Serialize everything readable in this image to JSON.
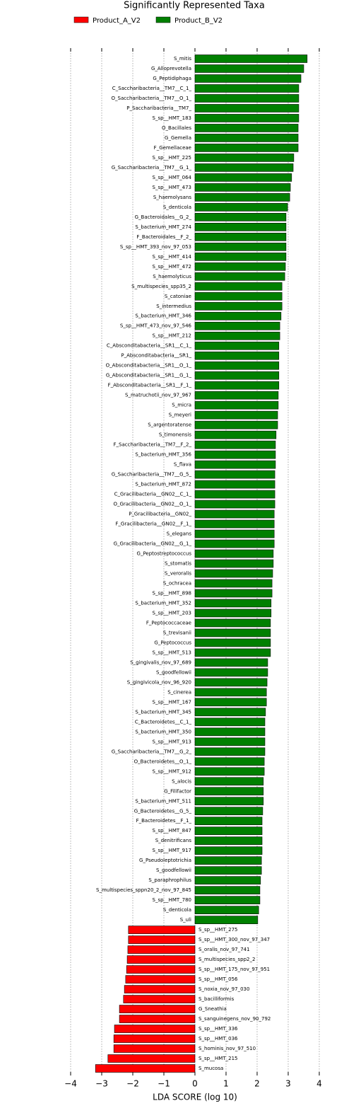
{
  "chart_data": {
    "type": "bar",
    "orientation": "horizontal",
    "title": "Significantly Represented Taxa",
    "xlabel": "LDA SCORE (log 10)",
    "xlim": [
      -4,
      4
    ],
    "xticks": [
      {
        "value": -4,
        "label": "−4"
      },
      {
        "value": -3,
        "label": "−3"
      },
      {
        "value": -2,
        "label": "−2"
      },
      {
        "value": -1,
        "label": "−1"
      },
      0,
      1,
      2,
      3,
      4
    ],
    "grid": true,
    "legend": "top",
    "categories": [
      "S_mitis",
      "G_Alloprevotella",
      "G_Peptidiphaga",
      "C_Saccharibacteria__TM7__C_1_",
      "O_Saccharibacteria__TM7__O_1_",
      "P_Saccharibacteria__TM7_",
      "S_sp__HMT_183",
      "O_Bacillales",
      "G_Gemella",
      "F_Gemellaceae",
      "S_sp__HMT_225",
      "G_Saccharibacteria__TM7__G_1_",
      "S_sp__HMT_064",
      "S_sp__HMT_473",
      "S_haemolysans",
      "S_denticola",
      "G_Bacteroidales__G_2_",
      "S_bacterium_HMT_274",
      "F_Bacteroidales__F_2_",
      "S_sp__HMT_393_nov_97_053",
      "S_sp__HMT_414",
      "S_sp__HMT_472",
      "S_haemolyticus",
      "S_multispecies_spp35_2",
      "S_catoniae",
      "S_intermedius",
      "S_bacterium_HMT_346",
      "S_sp__HMT_473_nov_97_546",
      "S_sp__HMT_212",
      "C_Absconditabacteria__SR1__C_1_",
      "P_Absconditabacteria__SR1_",
      "O_Absconditabacteria__SR1__O_1_",
      "G_Absconditabacteria__SR1__G_1_",
      "F_Absconditabacteria__SR1__F_1_",
      "S_matruchotii_nov_97_967",
      "S_micra",
      "S_meyeri",
      "S_argentoratense",
      "S_timonensis",
      "F_Saccharibacteria__TM7__F_2_",
      "S_bacterium_HMT_356",
      "S_flava",
      "G_Saccharibacteria__TM7__G_5_",
      "S_bacterium_HMT_872",
      "C_Gracilibacteria__GN02__C_1_",
      "O_Gracilibacteria__GN02__O_1_",
      "P_Gracilibacteria__GN02_",
      "F_Gracilibacteria__GN02__F_1_",
      "S_elegans",
      "G_Gracilibacteria__GN02__G_1_",
      "G_Peptostreptococcus",
      "S_stomatis",
      "S_veroralis",
      "S_ochracea",
      "S_sp__HMT_898",
      "S_bacterium_HMT_352",
      "S_sp__HMT_203",
      "F_Peptococcaceae",
      "S_trevisanii",
      "G_Peptococcus",
      "S_sp__HMT_513",
      "S_gingivalis_nov_97_689",
      "S_goodfellowii",
      "S_gingivicola_nov_96_920",
      "S_cinerea",
      "S_sp__HMT_167",
      "S_bacterium_HMT_345",
      "C_Bacteroidetes__C_1_",
      "S_bacterium_HMT_350",
      "S_sp__HMT_913",
      "G_Saccharibacteria__TM7__G_2_",
      "O_Bacteroidetes__O_1_",
      "S_sp__HMT_912",
      "S_alocis",
      "G_Filifactor",
      "S_bacterium_HMT_511",
      "G_Bacteroidetes__G_5_",
      "F_Bacteroidetes__F_1_",
      "S_sp__HMT_847",
      "S_denitrificans",
      "S_sp__HMT_917",
      "G_Pseudoleptotrichia",
      "S_goodfellowii",
      "S_paraphrophilus",
      "S_multispecies_sppn20_2_nov_97_845",
      "S_sp__HMT_780",
      "S_denticola",
      "S_uli",
      "S_sp__HMT_275",
      "S_sp__HMT_300_nov_97_347",
      "S_oralis_nov_97_741",
      "S_multispecies_spp2_2",
      "S_sp__HMT_175_nov_97_951",
      "S_sp__HMT_056",
      "S_noxia_nov_97_030",
      "S_bacilliformis",
      "G_Sneathia",
      "S_sanguinegens_nov_90_792",
      "S_sp__HMT_336",
      "S_sp__HMT_036",
      "S_hominis_nov_97_510",
      "S_sp__HMT_215",
      "S_mucosa"
    ],
    "series": [
      {
        "name": "Product_A_V2",
        "color": "#ff0000",
        "values": [
          null,
          null,
          null,
          null,
          null,
          null,
          null,
          null,
          null,
          null,
          null,
          null,
          null,
          null,
          null,
          null,
          null,
          null,
          null,
          null,
          null,
          null,
          null,
          null,
          null,
          null,
          null,
          null,
          null,
          null,
          null,
          null,
          null,
          null,
          null,
          null,
          null,
          null,
          null,
          null,
          null,
          null,
          null,
          null,
          null,
          null,
          null,
          null,
          null,
          null,
          null,
          null,
          null,
          null,
          null,
          null,
          null,
          null,
          null,
          null,
          null,
          null,
          null,
          null,
          null,
          null,
          null,
          null,
          null,
          null,
          null,
          null,
          null,
          null,
          null,
          null,
          null,
          null,
          null,
          null,
          null,
          null,
          null,
          null,
          null,
          null,
          null,
          null,
          -2.14,
          -2.14,
          -2.16,
          -2.18,
          -2.2,
          -2.23,
          -2.27,
          -2.3,
          -2.43,
          -2.43,
          -2.59,
          -2.61,
          -2.61,
          -2.8,
          -3.2
        ]
      },
      {
        "name": "Product_B_V2",
        "color": "#008000",
        "values": [
          3.61,
          3.5,
          3.41,
          3.34,
          3.34,
          3.34,
          3.34,
          3.32,
          3.32,
          3.32,
          3.18,
          3.16,
          3.11,
          3.07,
          3.05,
          2.98,
          2.93,
          2.93,
          2.93,
          2.93,
          2.93,
          2.91,
          2.89,
          2.8,
          2.8,
          2.8,
          2.77,
          2.73,
          2.73,
          2.7,
          2.7,
          2.7,
          2.7,
          2.7,
          2.68,
          2.68,
          2.66,
          2.66,
          2.61,
          2.59,
          2.59,
          2.59,
          2.57,
          2.57,
          2.57,
          2.57,
          2.55,
          2.55,
          2.55,
          2.55,
          2.52,
          2.52,
          2.5,
          2.48,
          2.48,
          2.45,
          2.45,
          2.43,
          2.43,
          2.43,
          2.43,
          2.34,
          2.34,
          2.32,
          2.3,
          2.3,
          2.27,
          2.25,
          2.25,
          2.25,
          2.25,
          2.23,
          2.23,
          2.2,
          2.2,
          2.2,
          2.18,
          2.16,
          2.16,
          2.16,
          2.16,
          2.14,
          2.14,
          2.11,
          2.09,
          2.09,
          2.05,
          2.02,
          null,
          null,
          null,
          null,
          null,
          null,
          null,
          null,
          null,
          null,
          null,
          null,
          null,
          null,
          null
        ]
      }
    ]
  }
}
